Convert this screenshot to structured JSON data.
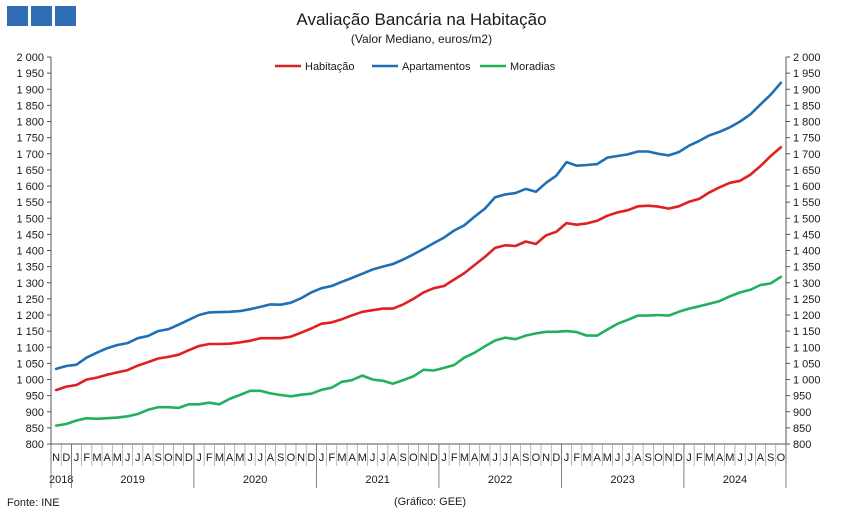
{
  "colors": {
    "logo": "#2e6db4"
  },
  "footer": {
    "source": "Fonte: INE",
    "note": "(Gráfico: GEE)"
  },
  "chart_data": {
    "type": "line",
    "title": "Avaliação Bancária na Habitação",
    "subtitle": "(Valor Mediano, euros/m2)",
    "ylim": [
      800,
      2000
    ],
    "ytick_step": 50,
    "dual_y_axis": true,
    "grid": false,
    "legend_position": "top-center",
    "month_labels": [
      "N",
      "D",
      "J",
      "F",
      "M",
      "A",
      "M",
      "J",
      "J",
      "A",
      "S",
      "O",
      "N",
      "D",
      "J",
      "F",
      "M",
      "A",
      "M",
      "J",
      "J",
      "A",
      "S",
      "O",
      "N",
      "D",
      "J",
      "F",
      "M",
      "A",
      "M",
      "J",
      "J",
      "A",
      "S",
      "O",
      "N",
      "D",
      "J",
      "F",
      "M",
      "A",
      "M",
      "J",
      "J",
      "A",
      "S",
      "O",
      "N",
      "D",
      "J",
      "F",
      "M",
      "A",
      "M",
      "J",
      "J",
      "A",
      "S",
      "O",
      "N",
      "D",
      "J",
      "F",
      "M",
      "A",
      "M",
      "J",
      "J",
      "A",
      "S",
      "O"
    ],
    "years": [
      {
        "label": "2018",
        "months": 2
      },
      {
        "label": "2019",
        "months": 12
      },
      {
        "label": "2020",
        "months": 12
      },
      {
        "label": "2021",
        "months": 12
      },
      {
        "label": "2022",
        "months": 12
      },
      {
        "label": "2023",
        "months": 12
      },
      {
        "label": "2024",
        "months": 10
      }
    ],
    "series": [
      {
        "name": "Habitação",
        "color": "#e02020",
        "values": [
          967,
          978,
          983,
          1000,
          1006,
          1015,
          1022,
          1029,
          1043,
          1054,
          1065,
          1070,
          1077,
          1091,
          1104,
          1110,
          1110,
          1111,
          1115,
          1120,
          1128,
          1128,
          1128,
          1133,
          1145,
          1158,
          1173,
          1177,
          1187,
          1199,
          1210,
          1215,
          1220,
          1220,
          1233,
          1250,
          1270,
          1283,
          1290,
          1310,
          1330,
          1355,
          1380,
          1408,
          1416,
          1414,
          1428,
          1420,
          1447,
          1458,
          1485,
          1480,
          1484,
          1492,
          1508,
          1518,
          1525,
          1537,
          1539,
          1536,
          1530,
          1537,
          1551,
          1560,
          1580,
          1596,
          1610,
          1616,
          1635,
          1662,
          1693,
          1720
        ]
      },
      {
        "name": "Apartamentos",
        "color": "#1f6fb5",
        "values": [
          1033,
          1042,
          1046,
          1068,
          1083,
          1097,
          1107,
          1113,
          1128,
          1135,
          1150,
          1156,
          1170,
          1185,
          1200,
          1208,
          1209,
          1210,
          1212,
          1218,
          1225,
          1233,
          1232,
          1238,
          1252,
          1270,
          1283,
          1290,
          1303,
          1315,
          1328,
          1341,
          1350,
          1358,
          1372,
          1388,
          1405,
          1423,
          1440,
          1462,
          1478,
          1505,
          1530,
          1565,
          1574,
          1578,
          1591,
          1582,
          1610,
          1632,
          1674,
          1663,
          1665,
          1668,
          1688,
          1693,
          1698,
          1707,
          1707,
          1700,
          1695,
          1705,
          1725,
          1740,
          1757,
          1768,
          1782,
          1800,
          1822,
          1853,
          1883,
          1920
        ]
      },
      {
        "name": "Moradias",
        "color": "#22b05a",
        "values": [
          857,
          862,
          873,
          880,
          878,
          880,
          882,
          886,
          893,
          906,
          914,
          914,
          912,
          923,
          923,
          928,
          923,
          940,
          952,
          965,
          965,
          957,
          952,
          948,
          953,
          956,
          968,
          975,
          993,
          998,
          1012,
          1000,
          996,
          987,
          998,
          1010,
          1030,
          1028,
          1036,
          1045,
          1068,
          1083,
          1103,
          1121,
          1130,
          1125,
          1136,
          1143,
          1148,
          1148,
          1150,
          1147,
          1136,
          1136,
          1155,
          1173,
          1185,
          1198,
          1198,
          1200,
          1198,
          1210,
          1220,
          1227,
          1235,
          1243,
          1258,
          1270,
          1278,
          1293,
          1298,
          1318
        ]
      }
    ]
  }
}
